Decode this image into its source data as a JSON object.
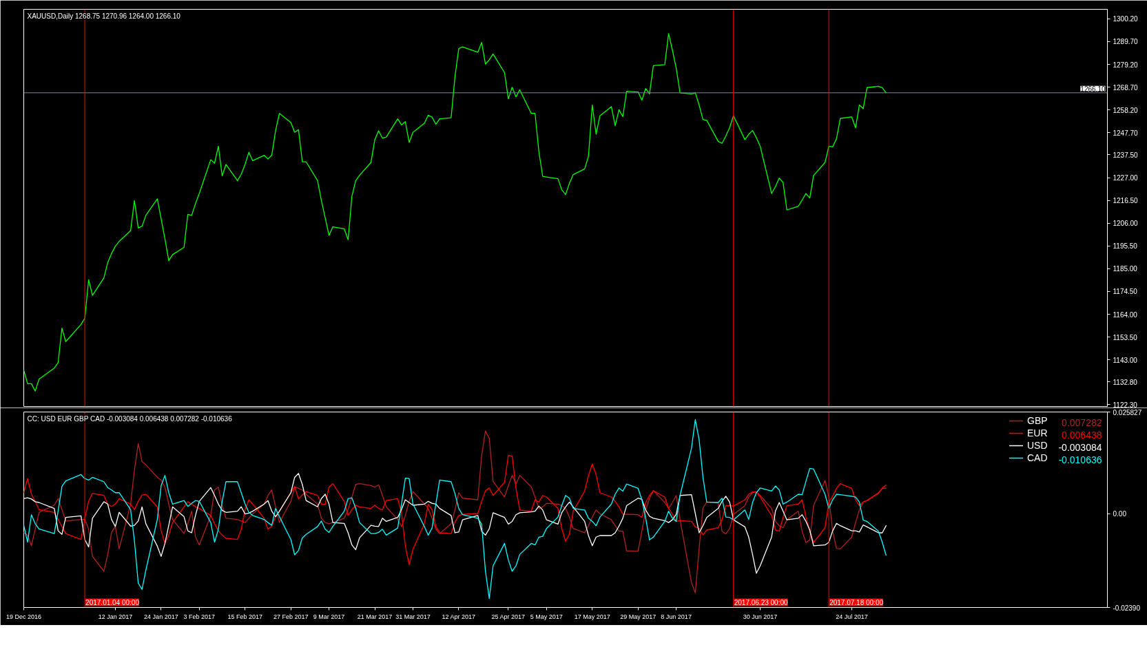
{
  "chart_data": [
    {
      "type": "line",
      "title": "XAUUSD,Daily 1268.75 1270.96 1264.00 1266.10",
      "color": "#00ff00",
      "x": [
        "2016-12-19",
        "2016-12-20",
        "2016-12-21",
        "2016-12-22",
        "2016-12-23",
        "2016-12-27",
        "2016-12-28",
        "2016-12-29",
        "2016-12-30",
        "2017-01-03",
        "2017-01-04",
        "2017-01-05",
        "2017-01-06",
        "2017-01-09",
        "2017-01-10",
        "2017-01-11",
        "2017-01-12",
        "2017-01-13",
        "2017-01-16",
        "2017-01-17",
        "2017-01-18",
        "2017-01-19",
        "2017-01-20",
        "2017-01-23",
        "2017-01-24",
        "2017-01-25",
        "2017-01-26",
        "2017-01-27",
        "2017-01-30",
        "2017-01-31",
        "2017-02-01",
        "2017-02-02",
        "2017-02-03",
        "2017-02-06",
        "2017-02-07",
        "2017-02-08",
        "2017-02-09",
        "2017-02-10",
        "2017-02-13",
        "2017-02-14",
        "2017-02-15",
        "2017-02-16",
        "2017-02-17",
        "2017-02-20",
        "2017-02-21",
        "2017-02-22",
        "2017-02-23",
        "2017-02-24",
        "2017-02-27",
        "2017-02-28",
        "2017-03-01",
        "2017-03-02",
        "2017-03-03",
        "2017-03-06",
        "2017-03-07",
        "2017-03-08",
        "2017-03-09",
        "2017-03-10",
        "2017-03-13",
        "2017-03-14",
        "2017-03-15",
        "2017-03-16",
        "2017-03-17",
        "2017-03-20",
        "2017-03-21",
        "2017-03-22",
        "2017-03-23",
        "2017-03-24",
        "2017-03-27",
        "2017-03-28",
        "2017-03-29",
        "2017-03-30",
        "2017-03-31",
        "2017-04-03",
        "2017-04-04",
        "2017-04-05",
        "2017-04-06",
        "2017-04-07",
        "2017-04-10",
        "2017-04-11",
        "2017-04-12",
        "2017-04-13",
        "2017-04-17",
        "2017-04-18",
        "2017-04-19",
        "2017-04-20",
        "2017-04-21",
        "2017-04-24",
        "2017-04-25",
        "2017-04-26",
        "2017-04-27",
        "2017-04-28",
        "2017-05-01",
        "2017-05-02",
        "2017-05-03",
        "2017-05-04",
        "2017-05-05",
        "2017-05-08",
        "2017-05-09",
        "2017-05-10",
        "2017-05-11",
        "2017-05-12",
        "2017-05-15",
        "2017-05-16",
        "2017-05-17",
        "2017-05-18",
        "2017-05-19",
        "2017-05-22",
        "2017-05-23",
        "2017-05-24",
        "2017-05-25",
        "2017-05-26",
        "2017-05-29",
        "2017-05-30",
        "2017-05-31",
        "2017-06-01",
        "2017-06-02",
        "2017-06-05",
        "2017-06-06",
        "2017-06-07",
        "2017-06-08",
        "2017-06-09",
        "2017-06-12",
        "2017-06-13",
        "2017-06-14",
        "2017-06-15",
        "2017-06-16",
        "2017-06-19",
        "2017-06-20",
        "2017-06-21",
        "2017-06-22",
        "2017-06-23",
        "2017-06-26",
        "2017-06-27",
        "2017-06-28",
        "2017-06-29",
        "2017-06-30",
        "2017-07-03",
        "2017-07-04",
        "2017-07-05",
        "2017-07-06",
        "2017-07-07",
        "2017-07-10",
        "2017-07-11",
        "2017-07-12",
        "2017-07-13",
        "2017-07-14",
        "2017-07-17",
        "2017-07-18",
        "2017-07-19",
        "2017-07-20",
        "2017-07-21",
        "2017-07-24",
        "2017-07-25",
        "2017-07-26",
        "2017-07-27",
        "2017-07-28",
        "2017-07-31",
        "2017-08-01",
        "2017-08-02"
      ],
      "values": [
        1138.3,
        1132.0,
        1132.0,
        1128.6,
        1134.1,
        1139.2,
        1141.7,
        1157.6,
        1151.4,
        1159.3,
        1162.2,
        1179.9,
        1172.7,
        1180.8,
        1187.8,
        1192.0,
        1195.4,
        1197.6,
        1202.6,
        1216.4,
        1203.8,
        1204.6,
        1209.6,
        1217.2,
        1208.0,
        1198.7,
        1188.7,
        1191.5,
        1194.9,
        1210.1,
        1209.6,
        1215.0,
        1219.7,
        1235.3,
        1233.6,
        1241.5,
        1227.8,
        1233.1,
        1225.6,
        1228.6,
        1233.1,
        1238.7,
        1234.8,
        1237.3,
        1235.6,
        1237.3,
        1248.7,
        1256.6,
        1252.4,
        1247.9,
        1249.1,
        1234.3,
        1234.3,
        1225.6,
        1216.4,
        1208.5,
        1200.4,
        1204.3,
        1203.4,
        1198.4,
        1218.4,
        1225.6,
        1228.1,
        1234.0,
        1244.5,
        1248.6,
        1245.2,
        1245.7,
        1254.1,
        1251.3,
        1252.8,
        1243.2,
        1247.9,
        1252.1,
        1255.8,
        1254.9,
        1251.6,
        1254.1,
        1254.6,
        1273.4,
        1286.5,
        1287.3,
        1284.8,
        1289.3,
        1279.3,
        1281.3,
        1284.0,
        1275.4,
        1263.3,
        1268.7,
        1264.2,
        1267.5,
        1256.6,
        1256.6,
        1239.0,
        1227.6,
        1227.3,
        1226.5,
        1221.4,
        1219.2,
        1224.4,
        1228.4,
        1231.0,
        1236.9,
        1260.5,
        1247.0,
        1255.5,
        1259.7,
        1250.9,
        1258.3,
        1255.1,
        1266.8,
        1266.5,
        1262.7,
        1268.1,
        1265.6,
        1278.6,
        1279.1,
        1293.4,
        1285.8,
        1277.4,
        1266.1,
        1265.6,
        1266.1,
        1260.5,
        1253.8,
        1253.4,
        1243.7,
        1242.8,
        1246.2,
        1250.1,
        1255.5,
        1244.5,
        1247.0,
        1248.7,
        1245.4,
        1241.5,
        1219.7,
        1222.9,
        1226.8,
        1224.8,
        1212.1,
        1213.8,
        1216.7,
        1219.7,
        1217.6,
        1228.0,
        1234.0,
        1241.5,
        1241.2,
        1244.9,
        1254.3,
        1255.0,
        1249.9,
        1260.5,
        1258.8,
        1268.5,
        1269.1,
        1268.5,
        1266.1
      ],
      "xlim": [
        "2016-12-19",
        "2017-09-29"
      ],
      "ylim": [
        1121.5,
        1304.6
      ],
      "yticks": [
        {
          "value": 1300.2,
          "label": "1300.20"
        },
        {
          "value": 1289.7,
          "label": "1289.70"
        },
        {
          "value": 1279.2,
          "label": "1279.20"
        },
        {
          "value": 1268.7,
          "label": "1268.70"
        },
        {
          "value": 1258.2,
          "label": "1258.20"
        },
        {
          "value": 1247.7,
          "label": "1247.70"
        },
        {
          "value": 1237.5,
          "label": "1237.50"
        },
        {
          "value": 1227.0,
          "label": "1227.00"
        },
        {
          "value": 1216.5,
          "label": "1216.50"
        },
        {
          "value": 1206.0,
          "label": "1206.00"
        },
        {
          "value": 1195.5,
          "label": "1195.50"
        },
        {
          "value": 1185.0,
          "label": "1185.00"
        },
        {
          "value": 1174.5,
          "label": "1174.50"
        },
        {
          "value": 1164.0,
          "label": "1164.00"
        },
        {
          "value": 1153.5,
          "label": "1153.50"
        },
        {
          "value": 1143.0,
          "label": "1143.00"
        },
        {
          "value": 1132.8,
          "label": "1132.80"
        },
        {
          "value": 1122.3,
          "label": "1122.30"
        }
      ],
      "tick_labels": "y",
      "ref_lines": [
        {
          "axis": "y",
          "value": 1266.1,
          "label": "1266.10",
          "color": "#778899"
        },
        {
          "axis": "x",
          "value": "2017-01-04",
          "color": "#ff0000"
        },
        {
          "axis": "x",
          "value": "2017-06-23",
          "color": "#ff0000"
        },
        {
          "axis": "x",
          "value": "2017-07-18",
          "color": "#ff0000"
        }
      ]
    },
    {
      "type": "line",
      "title": "CC: USD EUR GBP CAD -0.003084 0.006438 0.007282 -0.010636",
      "x": [
        "2016-12-19",
        "2016-12-20",
        "2016-12-21",
        "2016-12-22",
        "2016-12-23",
        "2016-12-27",
        "2016-12-28",
        "2016-12-29",
        "2016-12-30",
        "2017-01-03",
        "2017-01-04",
        "2017-01-05",
        "2017-01-06",
        "2017-01-09",
        "2017-01-10",
        "2017-01-11",
        "2017-01-12",
        "2017-01-13",
        "2017-01-16",
        "2017-01-17",
        "2017-01-18",
        "2017-01-19",
        "2017-01-20",
        "2017-01-23",
        "2017-01-24",
        "2017-01-25",
        "2017-01-26",
        "2017-01-27",
        "2017-01-30",
        "2017-01-31",
        "2017-02-01",
        "2017-02-02",
        "2017-02-03",
        "2017-02-06",
        "2017-02-07",
        "2017-02-08",
        "2017-02-09",
        "2017-02-10",
        "2017-02-13",
        "2017-02-14",
        "2017-02-15",
        "2017-02-16",
        "2017-02-17",
        "2017-02-20",
        "2017-02-21",
        "2017-02-22",
        "2017-02-23",
        "2017-02-24",
        "2017-02-27",
        "2017-02-28",
        "2017-03-01",
        "2017-03-02",
        "2017-03-03",
        "2017-03-06",
        "2017-03-07",
        "2017-03-08",
        "2017-03-09",
        "2017-03-10",
        "2017-03-13",
        "2017-03-14",
        "2017-03-15",
        "2017-03-16",
        "2017-03-17",
        "2017-03-20",
        "2017-03-21",
        "2017-03-22",
        "2017-03-23",
        "2017-03-24",
        "2017-03-27",
        "2017-03-28",
        "2017-03-29",
        "2017-03-30",
        "2017-03-31",
        "2017-04-03",
        "2017-04-04",
        "2017-04-05",
        "2017-04-06",
        "2017-04-07",
        "2017-04-10",
        "2017-04-11",
        "2017-04-12",
        "2017-04-13",
        "2017-04-17",
        "2017-04-18",
        "2017-04-19",
        "2017-04-20",
        "2017-04-21",
        "2017-04-24",
        "2017-04-25",
        "2017-04-26",
        "2017-04-27",
        "2017-04-28",
        "2017-05-01",
        "2017-05-02",
        "2017-05-03",
        "2017-05-04",
        "2017-05-05",
        "2017-05-08",
        "2017-05-09",
        "2017-05-10",
        "2017-05-11",
        "2017-05-12",
        "2017-05-15",
        "2017-05-16",
        "2017-05-17",
        "2017-05-18",
        "2017-05-19",
        "2017-05-22",
        "2017-05-23",
        "2017-05-24",
        "2017-05-25",
        "2017-05-26",
        "2017-05-29",
        "2017-05-30",
        "2017-05-31",
        "2017-06-01",
        "2017-06-02",
        "2017-06-05",
        "2017-06-06",
        "2017-06-07",
        "2017-06-08",
        "2017-06-09",
        "2017-06-12",
        "2017-06-13",
        "2017-06-14",
        "2017-06-15",
        "2017-06-16",
        "2017-06-19",
        "2017-06-20",
        "2017-06-21",
        "2017-06-22",
        "2017-06-23",
        "2017-06-26",
        "2017-06-27",
        "2017-06-28",
        "2017-06-29",
        "2017-06-30",
        "2017-07-03",
        "2017-07-04",
        "2017-07-05",
        "2017-07-06",
        "2017-07-07",
        "2017-07-10",
        "2017-07-11",
        "2017-07-12",
        "2017-07-13",
        "2017-07-14",
        "2017-07-17",
        "2017-07-18",
        "2017-07-19",
        "2017-07-20",
        "2017-07-21",
        "2017-07-24",
        "2017-07-25",
        "2017-07-26",
        "2017-07-27",
        "2017-07-28",
        "2017-07-31",
        "2017-08-01",
        "2017-08-02"
      ],
      "series": [
        {
          "name": "GBP",
          "color": "#b22222",
          "values": [
            -0.0048,
            -0.0055,
            -0.0082,
            -0.004,
            0.0003,
            0.0021,
            0.0038,
            0.001,
            -0.0019,
            -0.0015,
            -0.0015,
            -0.004,
            -0.0109,
            -0.0147,
            -0.0105,
            -0.0048,
            -0.0033,
            -0.009,
            0.0024,
            0.011,
            0.0178,
            0.0132,
            0.0124,
            0.0092,
            0.0085,
            0.0067,
            0.0024,
            -0.0015,
            -0.0051,
            -0.0026,
            0.0006,
            -0.0059,
            -0.008,
            -0.0005,
            0.006,
            0.0067,
            0.0021,
            -0.0012,
            -0.0015,
            -0.0019,
            -0.0023,
            -0.0012,
            -0.0001,
            0.0024,
            0.0046,
            0.006,
            0.0017,
            -0.0023,
            0.0031,
            0.0067,
            0.0064,
            0.006,
            0.0049,
            0.0024,
            -0.0012,
            -0.0023,
            -0.0026,
            -0.0023,
            -0.0012,
            0.001,
            0.0042,
            0.0074,
            0.0076,
            0.0071,
            0.0067,
            0.0073,
            0.0046,
            0.0017,
            -0.0015,
            -0.0033,
            -0.0005,
            0.0031,
            0.0056,
            0.0024,
            0.0013,
            -0.0012,
            -0.004,
            -0.0051,
            -0.0026,
            0.0008,
            0.0053,
            0.0039,
            0.0035,
            0.0148,
            0.021,
            0.0191,
            0.0082,
            0.0042,
            0.0071,
            0.0097,
            0.0075,
            0.0097,
            0.0068,
            0.0042,
            0.0013,
            0.0017,
            0.0026,
            0.0024,
            0.002,
            0.0013,
            -0.0009,
            -0.0038,
            -0.0049,
            -0.0031,
            -0.0009,
            0.0009,
            0.0,
            -0.0016,
            -0.0031,
            -0.0045,
            -0.0045,
            -0.0095,
            -0.0096,
            -0.0045,
            0.0009,
            0.0039,
            0.0058,
            0.0028,
            0.0013,
            0.0028,
            0.0046,
            -0.0016,
            -0.0176,
            -0.0202,
            -0.0089,
            0.0014,
            0.0029,
            0.0028,
            -0.0045,
            -0.0052,
            -0.0038,
            -0.0002,
            0.002,
            0.0042,
            0.0053,
            0.0055,
            0.0046,
            0.0013,
            -0.002,
            -0.0031,
            -0.0036,
            -0.0016,
            0.0006,
            -0.0045,
            -0.0074,
            -0.0067,
            0.002,
            0.0084,
            0.0042,
            -0.0045,
            -0.0089,
            -0.009,
            -0.006,
            -0.0023,
            0.0009,
            0.0029,
            0.0033,
            0.0051,
            0.0065,
            0.007282
          ]
        },
        {
          "name": "EUR",
          "color": "#ff0000",
          "values": [
            0.0053,
            0.0089,
            0.0049,
            0.0031,
            0.001,
            0.0003,
            -0.0015,
            -0.0033,
            -0.0051,
            -0.0066,
            -0.0012,
            0.0031,
            0.0051,
            0.0046,
            0.0024,
            0.0018,
            0.0024,
            0.0038,
            0.0024,
            0.001,
            0.0031,
            0.0047,
            0.0049,
            0.0017,
            -0.0044,
            -0.0076,
            -0.0055,
            -0.0023,
            0.0017,
            0.003,
            0.0024,
            0.0017,
            0.0013,
            -0.0005,
            -0.0026,
            -0.0044,
            -0.0055,
            -0.0063,
            -0.0066,
            -0.004,
            0.001,
            0.0035,
            0.0024,
            -0.0012,
            -0.004,
            -0.0032,
            -0.0008,
            0.0006,
            0.0053,
            0.0069,
            0.0037,
            0.0047,
            0.0056,
            0.0046,
            0.0024,
            0.0024,
            0.0067,
            0.0076,
            0.0031,
            -0.0005,
            0.001,
            0.0021,
            0.0017,
            0.0013,
            0.0021,
            0.0013,
            0.001,
            0.0033,
            0.0038,
            0.0003,
            -0.0083,
            -0.013,
            -0.0091,
            -0.0026,
            0.0024,
            0.001,
            -0.0033,
            -0.0049,
            -0.0051,
            -0.0022,
            -0.0005,
            -0.0002,
            0.0,
            0.0031,
            0.0058,
            0.0065,
            0.0046,
            0.0079,
            0.0148,
            0.0146,
            0.0064,
            0.0009,
            0.0006,
            0.0035,
            0.0029,
            0.0046,
            0.0042,
            0.0013,
            -0.0038,
            -0.0071,
            -0.0052,
            0.0006,
            0.0057,
            0.0097,
            0.0126,
            0.0099,
            0.0053,
            0.0042,
            0.0031,
            0.0017,
            -0.0002,
            -0.0002,
            -0.0003,
            -0.001,
            0.0028,
            0.0046,
            0.0058,
            0.0042,
            0.0013,
            -0.0002,
            -0.002,
            -0.0018,
            -0.002,
            -0.0034,
            -0.0038,
            -0.0054,
            -0.0042,
            -0.0036,
            -0.0016,
            0.002,
            0.002,
            0.0019,
            0.0035,
            0.0049,
            0.0055,
            0.0055,
            0.0042,
            -0.0005,
            -0.0042,
            -0.0045,
            -0.001,
            0.002,
            0.0024,
            0.0035,
            -0.0009,
            -0.0045,
            -0.0074,
            -0.0036,
            0.0029,
            0.0044,
            0.0064,
            0.0076,
            0.0064,
            0.0035,
            0.002,
            0.0029,
            0.0033,
            0.0053,
            0.0064,
            0.006438
          ]
        },
        {
          "name": "USD",
          "color": "#ffffff",
          "values": [
            0.0038,
            0.004,
            0.0037,
            0.003,
            0.0028,
            0.0013,
            -0.0044,
            -0.0053,
            -0.001,
            -0.0006,
            -0.0066,
            -0.0085,
            -0.0012,
            0.003,
            0.0024,
            -0.0015,
            -0.0033,
            0.0003,
            -0.0032,
            -0.003,
            -0.0019,
            0.0017,
            -0.0026,
            -0.0083,
            -0.0109,
            -0.0076,
            -0.003,
            0.0017,
            -0.0008,
            -0.0044,
            -0.0049,
            -0.0005,
            0.0031,
            0.0066,
            0.0046,
            0.0024,
            0.0008,
            0.0003,
            0.0006,
            0.0017,
            -0.0001,
            0.0001,
            0.0006,
            0.0024,
            0.0033,
            0.0006,
            -0.0008,
            0.0006,
            0.0053,
            0.0092,
            0.0102,
            0.0074,
            0.0033,
            0.0017,
            0.0038,
            0.0049,
            0.0024,
            -0.0023,
            -0.0025,
            -0.0049,
            -0.008,
            -0.0092,
            -0.0062,
            -0.003,
            -0.0032,
            -0.0033,
            -0.0012,
            -0.002,
            -0.001,
            0.001,
            0.0035,
            0.0028,
            0.0021,
            0.0024,
            0.0031,
            0.0026,
            0.0024,
            0.0013,
            -0.0005,
            -0.0049,
            -0.0047,
            -0.0016,
            -0.0005,
            -0.0045,
            -0.0055,
            -0.0039,
            0.0002,
            -0.001,
            -0.0027,
            -0.002,
            -0.0003,
            0.0002,
            0.0004,
            0.0006,
            0.0019,
            0.0009,
            -0.0016,
            -0.0027,
            0.0002,
            0.0017,
            0.0029,
            0.0017,
            -0.002,
            -0.0056,
            -0.0082,
            -0.006,
            -0.0056,
            -0.0056,
            -0.0049,
            -0.0032,
            -0.0012,
            0.002,
            0.0039,
            0.0036,
            0.0009,
            -0.0007,
            -0.0012,
            -0.0018,
            -0.0023,
            -0.0016,
            -0.0002,
            0.0046,
            0.0048,
            0.0,
            -0.0049,
            -0.0031,
            -0.001,
            0.0013,
            0.0031,
            0.0044,
            0.0029,
            -0.0016,
            -0.0034,
            -0.006,
            -0.0104,
            -0.0152,
            -0.0133,
            -0.006,
            0.0006,
            0.0028,
            0.0006,
            -0.0016,
            -0.0012,
            -0.0003,
            -0.002,
            -0.0042,
            -0.0082,
            -0.008,
            -0.0073,
            -0.0044,
            -0.0025,
            -0.0031,
            -0.0044,
            -0.0044,
            -0.0047,
            -0.0029,
            -0.0034,
            -0.0049,
            -0.0049,
            -0.003084
          ]
        },
        {
          "name": "CAD",
          "color": "#00ffff",
          "values": [
            -0.003,
            -0.0073,
            -0.0003,
            -0.0026,
            -0.0039,
            -0.0051,
            0.0006,
            0.0069,
            0.0083,
            0.0099,
            0.0089,
            0.0085,
            0.0092,
            0.0081,
            0.0066,
            0.006,
            0.0053,
            0.0053,
            0.001,
            -0.0069,
            -0.0177,
            -0.0193,
            -0.0144,
            -0.0015,
            0.0071,
            0.0097,
            0.0053,
            0.0024,
            0.0033,
            0.0018,
            0.0026,
            0.0033,
            0.0031,
            -0.0023,
            -0.0073,
            -0.004,
            0.0031,
            0.0081,
            0.0081,
            0.0053,
            0.0024,
            0.0003,
            -0.0005,
            -0.0015,
            -0.0023,
            -0.003,
            0.0013,
            -0.0008,
            -0.0066,
            -0.0105,
            -0.0094,
            -0.0062,
            -0.0053,
            -0.0033,
            -0.0019,
            -0.004,
            -0.0048,
            -0.0033,
            0.0006,
            0.0038,
            0.004,
            0.0013,
            -0.0023,
            -0.0051,
            -0.0051,
            -0.0048,
            -0.004,
            -0.0055,
            -0.0037,
            0.0024,
            0.009,
            0.0089,
            0.0024,
            -0.0033,
            -0.0055,
            -0.0037,
            0.0024,
            0.0085,
            0.0081,
            0.0051,
            0.0013,
            -0.0003,
            -0.0012,
            -0.0027,
            -0.0147,
            -0.0216,
            -0.0133,
            -0.0076,
            -0.0118,
            -0.0147,
            -0.0133,
            -0.0104,
            -0.0076,
            -0.008,
            -0.006,
            -0.0058,
            -0.0038,
            -0.0009,
            0.002,
            0.0046,
            0.0039,
            0.0013,
            0.0009,
            -0.0012,
            -0.002,
            -0.0031,
            -0.0009,
            0.0024,
            0.0049,
            0.0065,
            0.0057,
            0.0075,
            0.0064,
            0.0035,
            -0.0012,
            -0.0067,
            -0.006,
            -0.002,
            0.0006,
            -0.0012,
            -0.002,
            0.0046,
            0.0166,
            0.0239,
            0.0188,
            0.0093,
            0.0029,
            0.0028,
            0.0039,
            -0.0009,
            -0.001,
            -0.0016,
            0.0009,
            -0.0015,
            0.0028,
            0.0053,
            0.0065,
            0.0057,
            0.007,
            0.006,
            0.0024,
            0.0029,
            0.0049,
            0.0048,
            0.0082,
            0.0115,
            0.0113,
            0.0049,
            0.0013,
            0.0035,
            0.0049,
            0.0048,
            0.0044,
            0.0042,
            0.0029,
            -0.0017,
            -0.002,
            -0.0045,
            -0.0073,
            -0.010636
          ]
        }
      ],
      "xlim": [
        "2016-12-19",
        "2017-09-29"
      ],
      "ylim": [
        -0.0239,
        0.025827
      ],
      "xticks": [
        {
          "value": "2016-12-19",
          "label": "19 Dec 2016"
        },
        {
          "value": "2017-01-12",
          "label": "12 Jan 2017"
        },
        {
          "value": "2017-01-24",
          "label": "24 Jan 2017"
        },
        {
          "value": "2017-02-03",
          "label": "3 Feb 2017"
        },
        {
          "value": "2017-02-15",
          "label": "15 Feb 2017"
        },
        {
          "value": "2017-02-27",
          "label": "27 Feb 2017"
        },
        {
          "value": "2017-03-09",
          "label": "9 Mar 2017"
        },
        {
          "value": "2017-03-21",
          "label": "21 Mar 2017"
        },
        {
          "value": "2017-03-31",
          "label": "31 Mar 2017"
        },
        {
          "value": "2017-04-12",
          "label": "12 Apr 2017"
        },
        {
          "value": "2017-04-25",
          "label": "25 Apr 2017"
        },
        {
          "value": "2017-05-05",
          "label": "5 May 2017"
        },
        {
          "value": "2017-05-17",
          "label": "17 May 2017"
        },
        {
          "value": "2017-05-29",
          "label": "29 May 2017"
        },
        {
          "value": "2017-06-08",
          "label": "8 Jun 2017"
        },
        {
          "value": "2017-06-30",
          "label": "30 Jun 2017"
        },
        {
          "value": "2017-07-24",
          "label": "24 Jul 2017"
        }
      ],
      "yticks": [
        0.025827,
        {
          "value": 0,
          "label": "0.00"
        },
        {
          "value": -0.0239,
          "label": "-0.02390"
        }
      ],
      "legend": "top right",
      "annotations": [
        "0.007282",
        "0.006438",
        "-0.003084",
        "-0.010636"
      ],
      "ref_lines": [
        {
          "axis": "x",
          "value": "2017-01-04",
          "label": "2017.01.04 00:00",
          "color": "#ff0000"
        },
        {
          "axis": "x",
          "value": "2017-06-23",
          "label": "2017.06.23 00:00",
          "color": "#ff0000"
        },
        {
          "axis": "x",
          "value": "2017-07-18",
          "label": "2017.07.18 00:00",
          "color": "#ff0000"
        }
      ]
    }
  ]
}
